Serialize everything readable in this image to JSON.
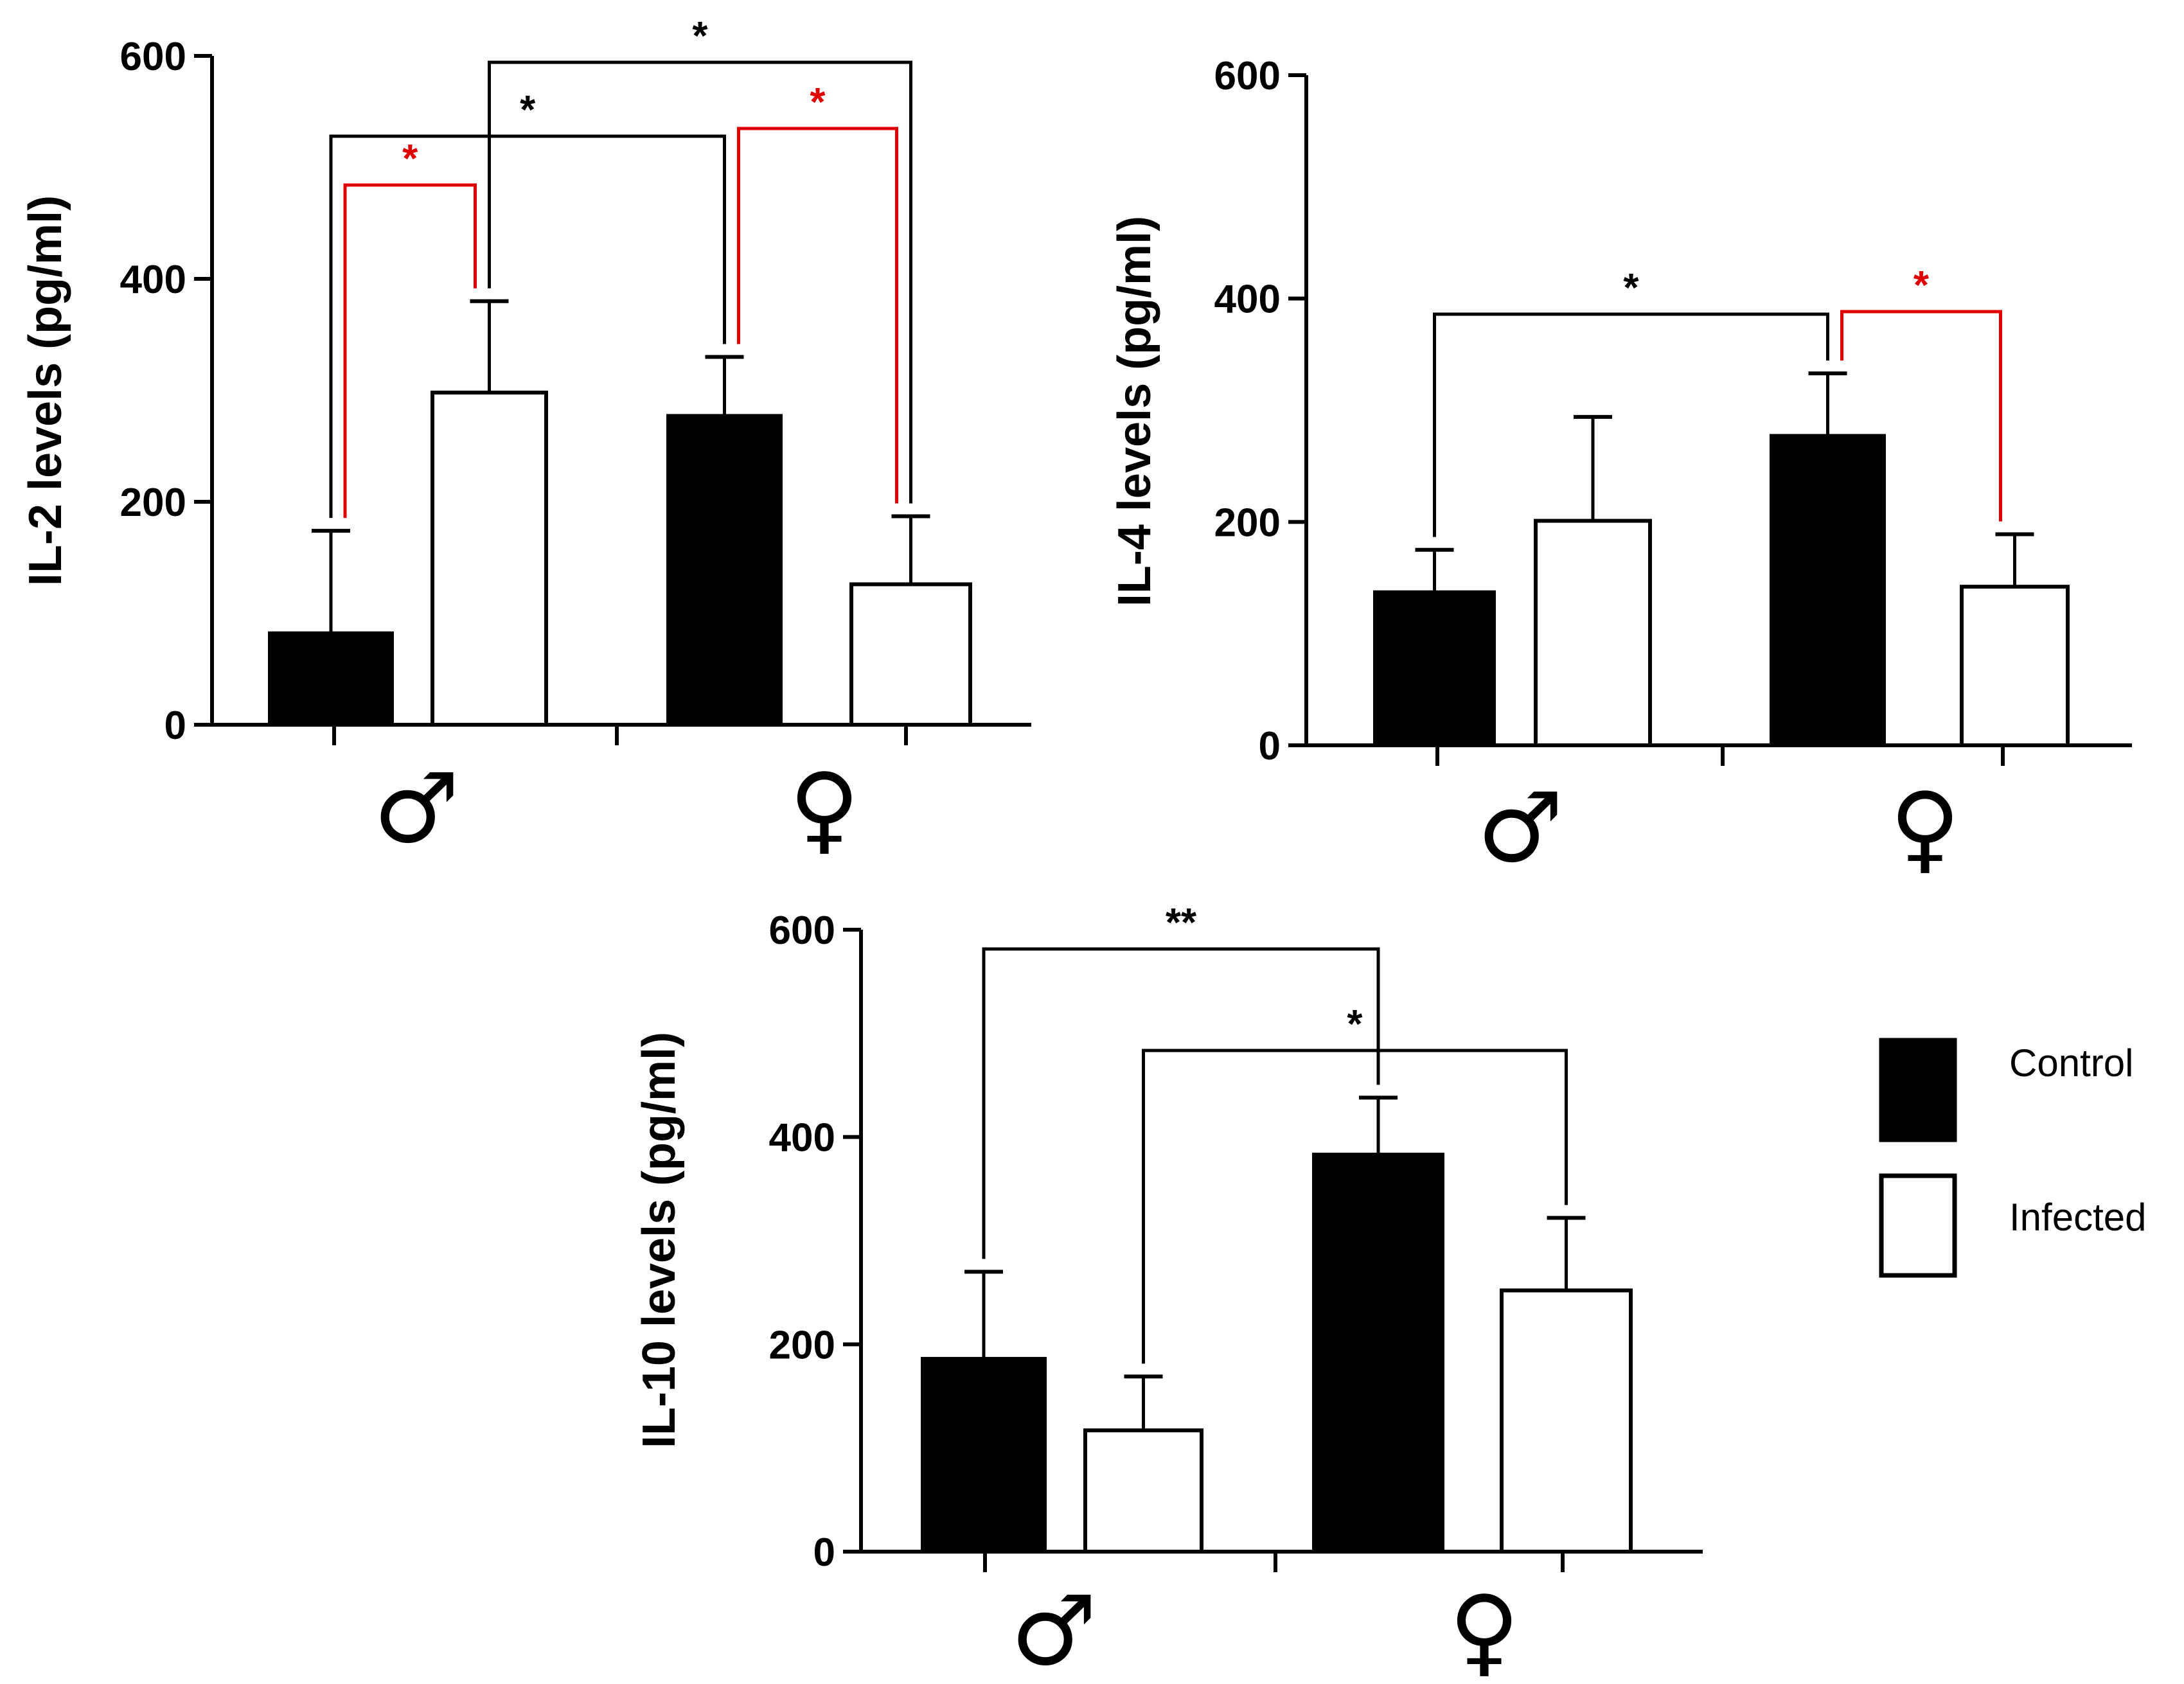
{
  "chart_data": [
    {
      "type": "bar",
      "ylabel": "IL-2  levels (pg/ml)",
      "ylim": [
        0,
        600
      ],
      "yticks": [
        0,
        200,
        400,
        600
      ],
      "groups": [
        "♂",
        "♀"
      ],
      "series": [
        {
          "name": "Control",
          "values": [
            82,
            277
          ],
          "errors": [
            92,
            53
          ]
        },
        {
          "name": "Infected",
          "values": [
            298,
            126
          ],
          "errors": [
            82,
            61
          ]
        }
      ],
      "significance": [
        {
          "from": [
            0,
            "Control"
          ],
          "to": [
            0,
            "Infected"
          ],
          "label": "*",
          "color": "#e00000"
        },
        {
          "from": [
            0,
            "Control"
          ],
          "to": [
            1,
            "Control"
          ],
          "label": "*",
          "color": "#000000"
        },
        {
          "from": [
            0,
            "Infected"
          ],
          "to": [
            1,
            "Infected"
          ],
          "label": "*",
          "color": "#000000"
        },
        {
          "from": [
            1,
            "Control"
          ],
          "to": [
            1,
            "Infected"
          ],
          "label": "*",
          "color": "#e00000"
        }
      ]
    },
    {
      "type": "bar",
      "ylabel": "IL-4  levels (pg/ml)",
      "ylim": [
        0,
        600
      ],
      "yticks": [
        0,
        200,
        400,
        600
      ],
      "groups": [
        "♂",
        "♀"
      ],
      "series": [
        {
          "name": "Control",
          "values": [
            137,
            277
          ],
          "errors": [
            38,
            56
          ]
        },
        {
          "name": "Infected",
          "values": [
            201,
            142
          ],
          "errors": [
            93,
            47
          ]
        }
      ],
      "significance": [
        {
          "from": [
            0,
            "Control"
          ],
          "to": [
            1,
            "Control"
          ],
          "label": "*",
          "color": "#000000"
        },
        {
          "from": [
            1,
            "Control"
          ],
          "to": [
            1,
            "Infected"
          ],
          "label": "*",
          "color": "#e00000"
        }
      ]
    },
    {
      "type": "bar",
      "ylabel": "IL-10  levels (pg/ml)",
      "ylim": [
        0,
        600
      ],
      "yticks": [
        0,
        200,
        400,
        600
      ],
      "groups": [
        "♂",
        "♀"
      ],
      "series": [
        {
          "name": "Control",
          "values": [
            186,
            383
          ],
          "errors": [
            84,
            55
          ]
        },
        {
          "name": "Infected",
          "values": [
            117,
            252
          ],
          "errors": [
            52,
            70
          ]
        }
      ],
      "significance": [
        {
          "from": [
            0,
            "Control"
          ],
          "to": [
            1,
            "Control"
          ],
          "label": "**",
          "color": "#000000"
        },
        {
          "from": [
            0,
            "Infected"
          ],
          "to": [
            1,
            "Infected"
          ],
          "label": "*",
          "color": "#000000"
        }
      ]
    }
  ],
  "legend": {
    "items": [
      {
        "label": "Control",
        "fill": "#000000"
      },
      {
        "label": "Infected",
        "fill": "#ffffff"
      }
    ]
  },
  "colors": {
    "black": "#000000",
    "red": "#e00000",
    "white": "#ffffff"
  }
}
